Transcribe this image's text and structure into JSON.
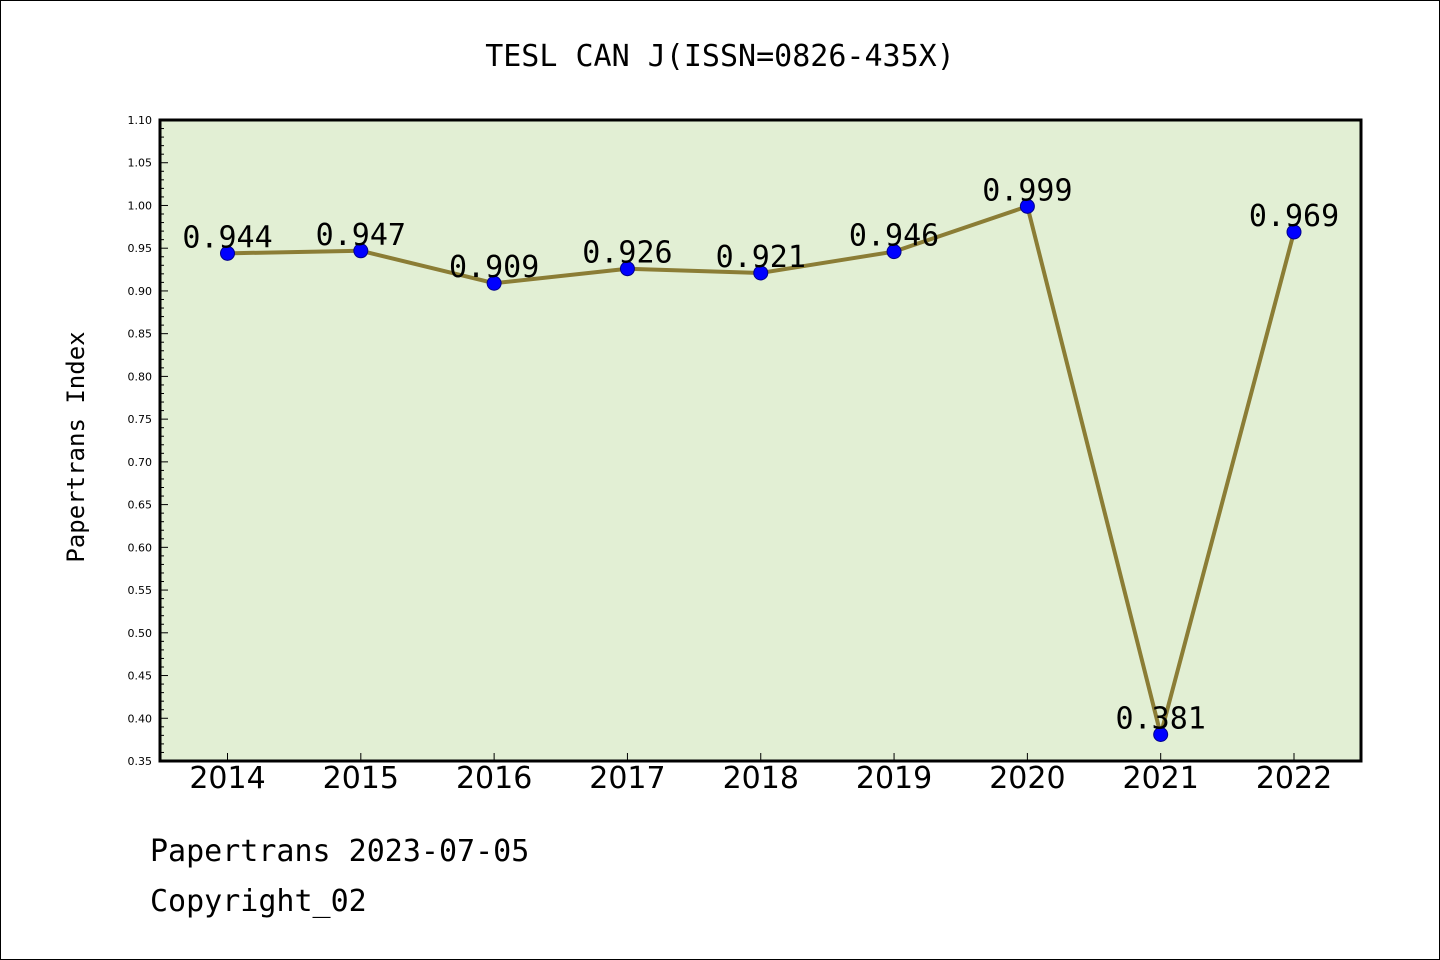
{
  "chart_data": {
    "type": "line",
    "title": "TESL CAN J(ISSN=0826-435X)",
    "ylabel": "Papertrans Index",
    "xlabel": "",
    "categories": [
      "2014",
      "2015",
      "2016",
      "2017",
      "2018",
      "2019",
      "2020",
      "2021",
      "2022"
    ],
    "values": [
      0.944,
      0.947,
      0.909,
      0.926,
      0.921,
      0.946,
      0.999,
      0.381,
      0.969
    ],
    "data_labels": [
      "0.944",
      "0.947",
      "0.909",
      "0.926",
      "0.921",
      "0.946",
      "0.999",
      "0.381",
      "0.969"
    ],
    "ylim": [
      0.35,
      1.1
    ],
    "yticks": [
      "0.35",
      "0.40",
      "0.45",
      "0.50",
      "0.55",
      "0.60",
      "0.65",
      "0.70",
      "0.75",
      "0.80",
      "0.85",
      "0.90",
      "0.95",
      "1.00",
      "1.05",
      "1.10"
    ],
    "grid": false,
    "colors": {
      "plot_background": "#e2efd4",
      "line": "#8b7d35",
      "marker": "#0000ff"
    }
  },
  "footer": {
    "line1": "Papertrans 2023-07-05",
    "line2": "Copyright_02"
  }
}
